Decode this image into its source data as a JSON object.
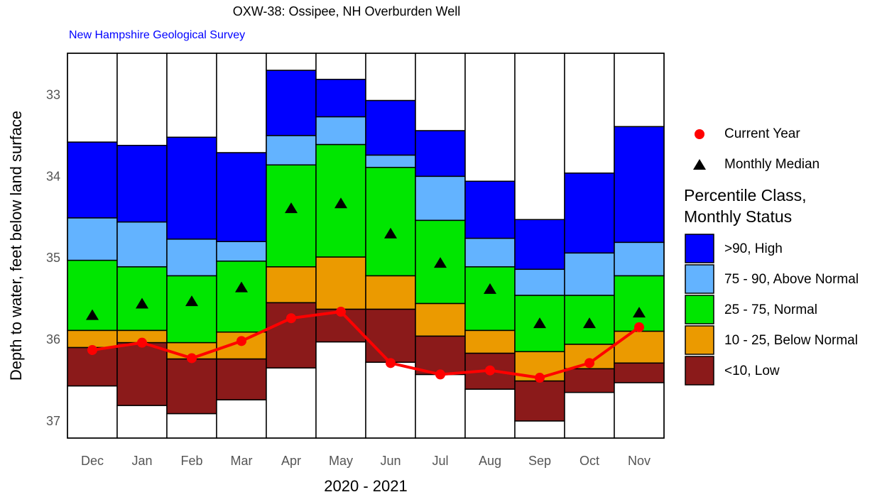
{
  "chart_data": {
    "type": "percentile_boxes",
    "title": "OXW-38: Ossipee, NH Overburden Well",
    "subtitle": "New Hampshire Geological Survey",
    "y_label": "Depth to water, feet below land surface",
    "x_label": "2020 - 2021",
    "categories": [
      "Dec",
      "Jan",
      "Feb",
      "Mar",
      "Apr",
      "May",
      "Jun",
      "Jul",
      "Aug",
      "Sep",
      "Oct",
      "Nov"
    ],
    "ylim": [
      32.48,
      37.2
    ],
    "yticks": [
      33,
      34,
      35,
      36,
      37
    ],
    "y_inverted": true,
    "legend_title": [
      "Percentile Class,",
      "Monthly Status"
    ],
    "classes": [
      {
        "name": ">90, High",
        "color": "#0000ff",
        "values": [
          [
            33.57,
            34.5
          ],
          [
            33.61,
            34.55
          ],
          [
            33.51,
            34.76
          ],
          [
            33.7,
            34.79
          ],
          [
            32.69,
            33.49
          ],
          [
            32.8,
            33.26
          ],
          [
            33.06,
            33.73
          ],
          [
            33.43,
            33.99
          ],
          [
            34.05,
            34.75
          ],
          [
            34.52,
            35.13
          ],
          [
            33.95,
            34.93
          ],
          [
            33.38,
            34.8
          ]
        ]
      },
      {
        "name": "75 - 90, Above Normal",
        "color": "#63b3ff",
        "values": [
          [
            34.5,
            35.02
          ],
          [
            34.55,
            35.1
          ],
          [
            34.76,
            35.21
          ],
          [
            34.79,
            35.03
          ],
          [
            33.49,
            33.85
          ],
          [
            33.26,
            33.6
          ],
          [
            33.73,
            33.88
          ],
          [
            33.99,
            34.53
          ],
          [
            34.75,
            35.1
          ],
          [
            35.13,
            35.45
          ],
          [
            34.93,
            35.45
          ],
          [
            34.8,
            35.21
          ]
        ]
      },
      {
        "name": "25 - 75, Normal",
        "color": "#00e600",
        "values": [
          [
            35.02,
            35.88
          ],
          [
            35.1,
            35.88
          ],
          [
            35.21,
            36.03
          ],
          [
            35.03,
            35.9
          ],
          [
            33.85,
            35.1
          ],
          [
            33.6,
            34.98
          ],
          [
            33.88,
            35.21
          ],
          [
            34.53,
            35.55
          ],
          [
            35.1,
            35.88
          ],
          [
            35.45,
            36.14
          ],
          [
            35.45,
            36.05
          ],
          [
            35.21,
            35.89
          ]
        ]
      },
      {
        "name": "10 - 25, Below Normal",
        "color": "#eb9a00",
        "values": [
          [
            35.88,
            36.09
          ],
          [
            35.88,
            36.03
          ],
          [
            36.03,
            36.23
          ],
          [
            35.9,
            36.23
          ],
          [
            35.1,
            35.54
          ],
          [
            34.98,
            35.62
          ],
          [
            35.21,
            35.62
          ],
          [
            35.55,
            35.95
          ],
          [
            35.88,
            36.16
          ],
          [
            36.14,
            36.5
          ],
          [
            36.05,
            36.35
          ],
          [
            35.89,
            36.28
          ]
        ]
      },
      {
        "name": "<10, Low",
        "color": "#8b1a1a",
        "values": [
          [
            36.09,
            36.56
          ],
          [
            36.03,
            36.8
          ],
          [
            36.23,
            36.9
          ],
          [
            36.23,
            36.73
          ],
          [
            35.54,
            36.34
          ],
          [
            35.62,
            36.02
          ],
          [
            35.62,
            36.27
          ],
          [
            35.95,
            36.42
          ],
          [
            36.16,
            36.6
          ],
          [
            36.5,
            36.99
          ],
          [
            36.35,
            36.64
          ],
          [
            36.28,
            36.52
          ]
        ]
      }
    ],
    "median": {
      "name": "Monthly Median",
      "color": "#000000",
      "values": [
        35.69,
        35.55,
        35.52,
        35.35,
        34.38,
        34.32,
        34.69,
        35.05,
        35.37,
        35.79,
        35.79,
        35.66
      ]
    },
    "current_year": {
      "name": "Current Year",
      "color": "#ff0000",
      "values": [
        36.12,
        36.03,
        36.22,
        36.01,
        35.73,
        35.65,
        36.28,
        36.42,
        36.37,
        36.46,
        36.28,
        35.84
      ]
    }
  }
}
